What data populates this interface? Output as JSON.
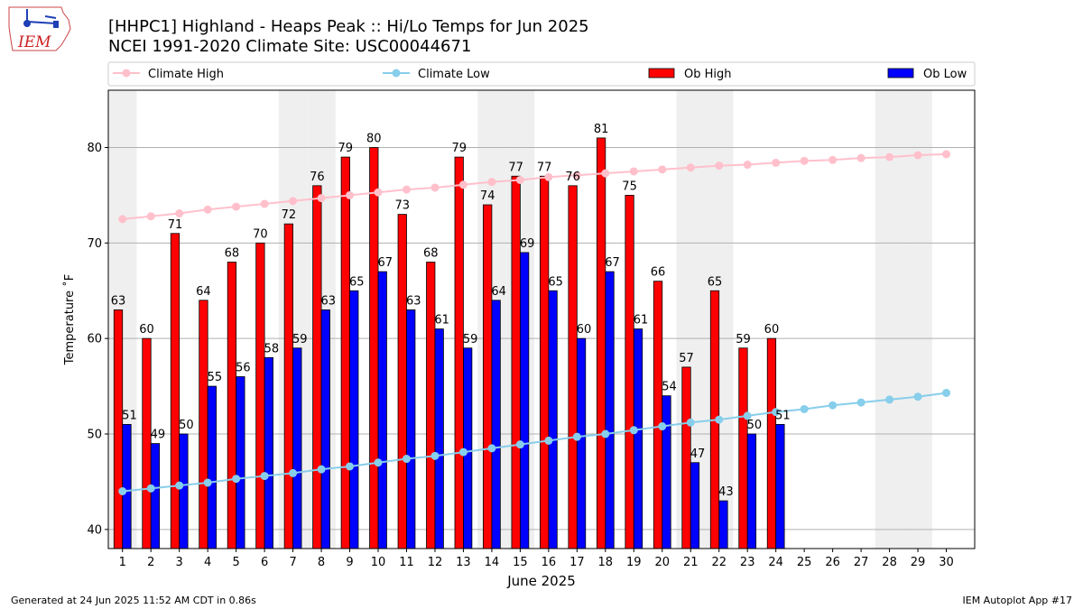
{
  "chart_data": {
    "type": "bar",
    "title_line1": "[HHPC1] Highland - Heaps Peak :: Hi/Lo Temps for Jun 2025",
    "title_line2": "NCEI 1991-2020 Climate Site: USC00044671",
    "xlabel": "June 2025",
    "ylabel": "Temperature ˚F",
    "ylim": [
      38,
      86
    ],
    "yticks": [
      40,
      50,
      60,
      70,
      80
    ],
    "days": [
      1,
      2,
      3,
      4,
      5,
      6,
      7,
      8,
      9,
      10,
      11,
      12,
      13,
      14,
      15,
      16,
      17,
      18,
      19,
      20,
      21,
      22,
      23,
      24,
      25,
      26,
      27,
      28,
      29,
      30
    ],
    "weekend_days": [
      1,
      7,
      8,
      14,
      15,
      21,
      22,
      28,
      29
    ],
    "grid": true,
    "legend_position": "top",
    "series": [
      {
        "name": "Climate High",
        "kind": "line",
        "color": "#ffc0cb",
        "values": [
          72.5,
          72.8,
          73.1,
          73.5,
          73.8,
          74.1,
          74.4,
          74.7,
          75.0,
          75.3,
          75.6,
          75.8,
          76.1,
          76.4,
          76.6,
          76.9,
          77.1,
          77.3,
          77.5,
          77.7,
          77.9,
          78.1,
          78.2,
          78.4,
          78.6,
          78.7,
          78.9,
          79.0,
          79.2,
          79.3
        ]
      },
      {
        "name": "Climate Low",
        "kind": "line",
        "color": "#87ceeb",
        "values": [
          44.0,
          44.3,
          44.6,
          44.9,
          45.3,
          45.6,
          45.9,
          46.3,
          46.6,
          47.0,
          47.4,
          47.7,
          48.1,
          48.5,
          48.9,
          49.3,
          49.7,
          50.0,
          50.4,
          50.8,
          51.2,
          51.5,
          51.9,
          52.3,
          52.6,
          53.0,
          53.3,
          53.6,
          53.9,
          54.3
        ]
      },
      {
        "name": "Ob High",
        "kind": "bar",
        "color": "#ff0000",
        "values": [
          63,
          60,
          71,
          64,
          68,
          70,
          72,
          76,
          79,
          80,
          73,
          68,
          79,
          74,
          77,
          77,
          76,
          81,
          75,
          66,
          57,
          65,
          59,
          60
        ]
      },
      {
        "name": "Ob Low",
        "kind": "bar",
        "color": "#0000ff",
        "values": [
          51,
          49,
          50,
          55,
          56,
          58,
          59,
          63,
          65,
          67,
          63,
          61,
          59,
          64,
          69,
          65,
          60,
          67,
          61,
          54,
          47,
          43,
          50,
          51
        ]
      }
    ]
  },
  "footer": {
    "left": "Generated at 24 Jun 2025 11:52 AM CDT in 0.86s",
    "right": "IEM Autoplot App #17"
  },
  "logo": {
    "text": "IEM"
  }
}
